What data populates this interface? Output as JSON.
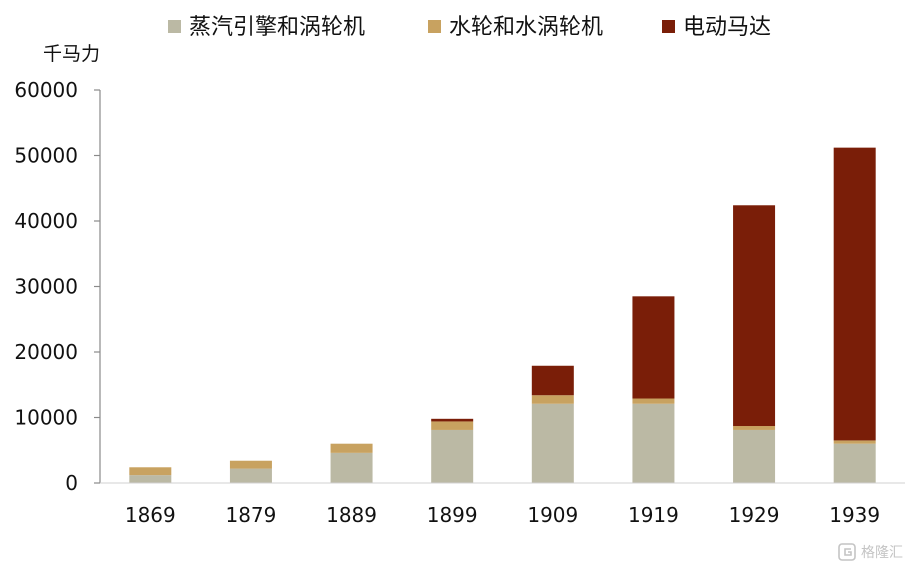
{
  "chart_data": {
    "type": "bar",
    "stacked": true,
    "title": "",
    "ylabel": "千马力",
    "xlabel": "",
    "categories": [
      "1869",
      "1879",
      "1889",
      "1899",
      "1909",
      "1919",
      "1929",
      "1939"
    ],
    "series": [
      {
        "name": "蒸汽引擎和涡轮机",
        "color": "#bbb9a4",
        "values": [
          1200,
          2200,
          4600,
          8100,
          12100,
          12100,
          8100,
          6000
        ]
      },
      {
        "name": "水轮和水涡轮机",
        "color": "#c8a260",
        "values": [
          1200,
          1200,
          1400,
          1300,
          1300,
          800,
          600,
          500
        ]
      },
      {
        "name": "电动马达",
        "color": "#7a1e08",
        "values": [
          0,
          0,
          0,
          400,
          4500,
          15600,
          33700,
          44700
        ]
      }
    ],
    "ylim": [
      0,
      60000
    ],
    "yticks": [
      "60000",
      "50000",
      "40000",
      "30000",
      "20000",
      "10000",
      "0"
    ],
    "legend_position": "top",
    "grid": false
  },
  "watermark": {
    "text": "格隆汇",
    "icon": "g-logo-icon"
  }
}
